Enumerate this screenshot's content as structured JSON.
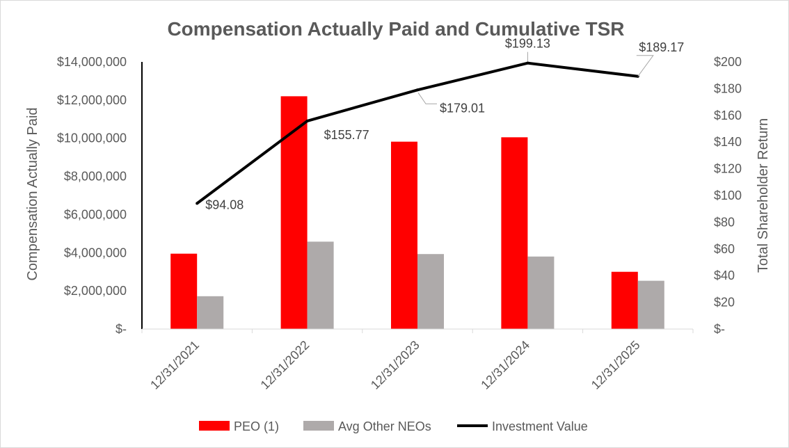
{
  "chart_data": {
    "type": "bar",
    "title": "Compensation Actually Paid and Cumulative TSR",
    "categories": [
      "12/31/2021",
      "12/31/2022",
      "12/31/2023",
      "12/31/2024",
      "12/31/2025"
    ],
    "series": [
      {
        "name": "PEO (1)",
        "type": "bar",
        "axis": "left",
        "color": "#ff0000",
        "values": [
          3950000,
          12200000,
          9820000,
          10050000,
          3000000
        ]
      },
      {
        "name": "Avg Other NEOs",
        "type": "bar",
        "axis": "left",
        "color": "#aeaaaa",
        "values": [
          1720000,
          4580000,
          3930000,
          3800000,
          2530000
        ]
      },
      {
        "name": "Investment Value",
        "type": "line",
        "axis": "right",
        "color": "#000000",
        "values": [
          94.08,
          155.77,
          179.01,
          199.13,
          189.17
        ],
        "labels": [
          "$94.08",
          "$155.77",
          "$179.01",
          "$199.13",
          "$189.17"
        ]
      }
    ],
    "ylabel": "Compensation Actually Paid",
    "y2label": "Total Shareholder Return",
    "ylim": [
      0,
      14000000
    ],
    "y2lim": [
      0,
      200
    ],
    "yticks": [
      0,
      2000000,
      4000000,
      6000000,
      8000000,
      10000000,
      12000000,
      14000000
    ],
    "ytick_labels": [
      "$-",
      "$2,000,000",
      "$4,000,000",
      "$6,000,000",
      "$8,000,000",
      "$10,000,000",
      "$12,000,000",
      "$14,000,000"
    ],
    "y2ticks": [
      0,
      20,
      40,
      60,
      80,
      100,
      120,
      140,
      160,
      180,
      200
    ],
    "y2tick_labels": [
      "$-",
      "$20",
      "$40",
      "$60",
      "$80",
      "$100",
      "$120",
      "$140",
      "$160",
      "$180",
      "$200"
    ],
    "grid": false,
    "legend_position": "bottom"
  }
}
